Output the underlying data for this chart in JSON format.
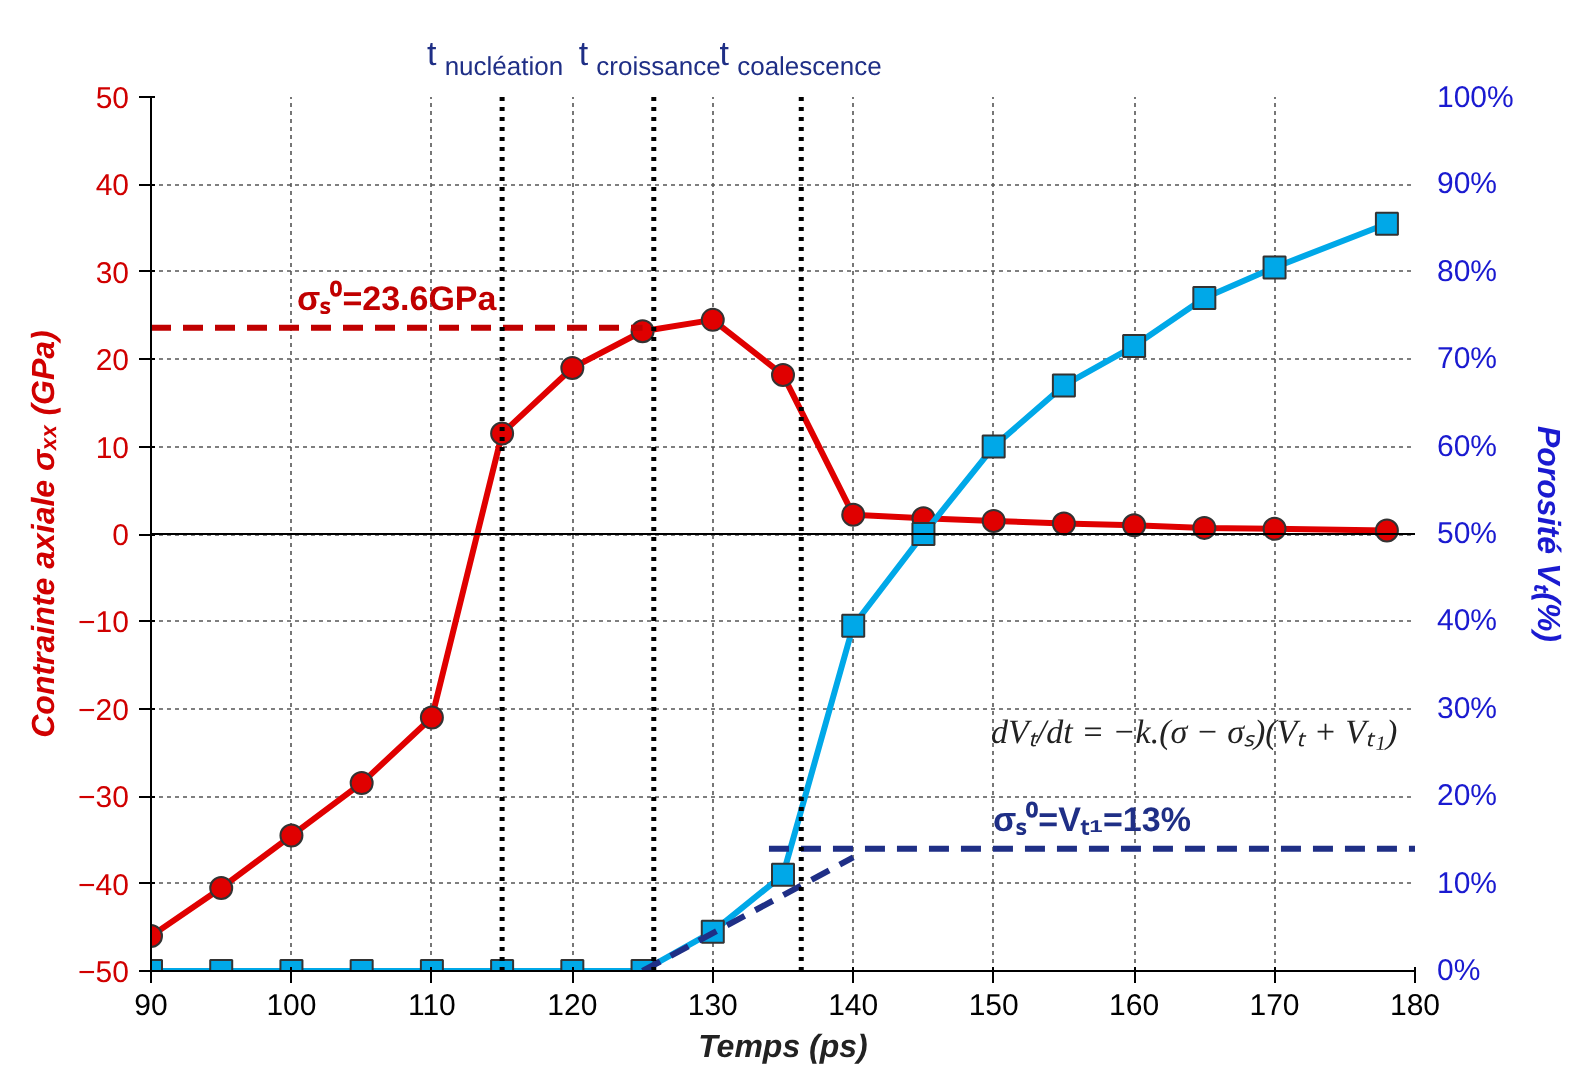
{
  "chart_data": {
    "type": "line",
    "xlabel": "Temps (ps)",
    "ylabel": "Contrainte axiale σₓₓ (GPa)",
    "y2label": "Porosité Vₜ(%)",
    "xlim": [
      90,
      180
    ],
    "xticks": [
      90,
      100,
      110,
      120,
      130,
      140,
      150,
      160,
      170,
      180
    ],
    "ylim": [
      -50,
      50
    ],
    "yticks": [
      -50,
      -40,
      -30,
      -20,
      -10,
      0,
      10,
      20,
      30,
      40,
      50
    ],
    "y2lim": [
      0,
      100
    ],
    "y2ticks": [
      {
        "value": 0,
        "label": "0%"
      },
      {
        "value": 10,
        "label": "10%"
      },
      {
        "value": 20,
        "label": "20%"
      },
      {
        "value": 30,
        "label": "30%"
      },
      {
        "value": 40,
        "label": "40%"
      },
      {
        "value": 50,
        "label": "50%"
      },
      {
        "value": 60,
        "label": "60%"
      },
      {
        "value": 70,
        "label": "70%"
      },
      {
        "value": 80,
        "label": "80%"
      },
      {
        "value": 90,
        "label": "90%"
      },
      {
        "value": 100,
        "label": "100%"
      }
    ],
    "grid": true,
    "legend": false,
    "series": [
      {
        "color": "#e00000",
        "marker": "circle",
        "line_style": "solid",
        "x": [
          90,
          95,
          100,
          105,
          110,
          115,
          120,
          125,
          130,
          135,
          140,
          145,
          150,
          155,
          160,
          165,
          170,
          178
        ],
        "values": [
          -46,
          -40.5,
          -34.5,
          -28.5,
          -21,
          11.5,
          19,
          23.2,
          24.5,
          18.2,
          2.2,
          1.8,
          1.5,
          1.2,
          1,
          0.7,
          0.6,
          0.4
        ]
      },
      {
        "color": "#00a8e8",
        "marker": "square",
        "line_style": "solid",
        "axis": "y2",
        "x": [
          90,
          95,
          100,
          105,
          110,
          115,
          120,
          125,
          130,
          135,
          140,
          145,
          150,
          155,
          160,
          165,
          170,
          178
        ],
        "values": [
          0,
          0,
          0,
          0,
          0,
          0,
          0,
          0,
          4.5,
          11,
          39.5,
          50,
          60,
          67,
          71.5,
          77,
          80.5,
          85.5
        ]
      },
      {
        "name": "σₛ⁰=23.6GPa",
        "color": "#c00000",
        "marker": "none",
        "line_style": "dashed",
        "x": [
          90,
          125
        ],
        "values": [
          23.6,
          23.6
        ]
      },
      {
        "name": "σₛ⁰=Vₜ₁=13%",
        "color": "#1f2f86",
        "marker": "none",
        "line_style": "dashed",
        "axis": "y2",
        "x": [
          134,
          180
        ],
        "values": [
          14,
          14
        ]
      },
      {
        "color": "#1f2f86",
        "marker": "none",
        "line_style": "dashed",
        "axis": "y2",
        "x": [
          125,
          140
        ],
        "values": [
          0,
          13
        ]
      }
    ],
    "ref_lines": [
      {
        "axis": "x",
        "value": 115,
        "label": "t$_{nucléation}$",
        "color": "#000000",
        "line_style": "dotted"
      },
      {
        "axis": "x",
        "value": 125.8,
        "label": "t$_{croissance}$",
        "color": "#000000",
        "line_style": "dotted"
      },
      {
        "axis": "x",
        "value": 136.3,
        "label": "t$_{coalescence}$",
        "color": "#000000",
        "line_style": "dotted"
      }
    ],
    "annotations": [
      "dVₜ/dt = −k.(σ − σₛ)(Vₜ + Vₜ₁)"
    ]
  }
}
